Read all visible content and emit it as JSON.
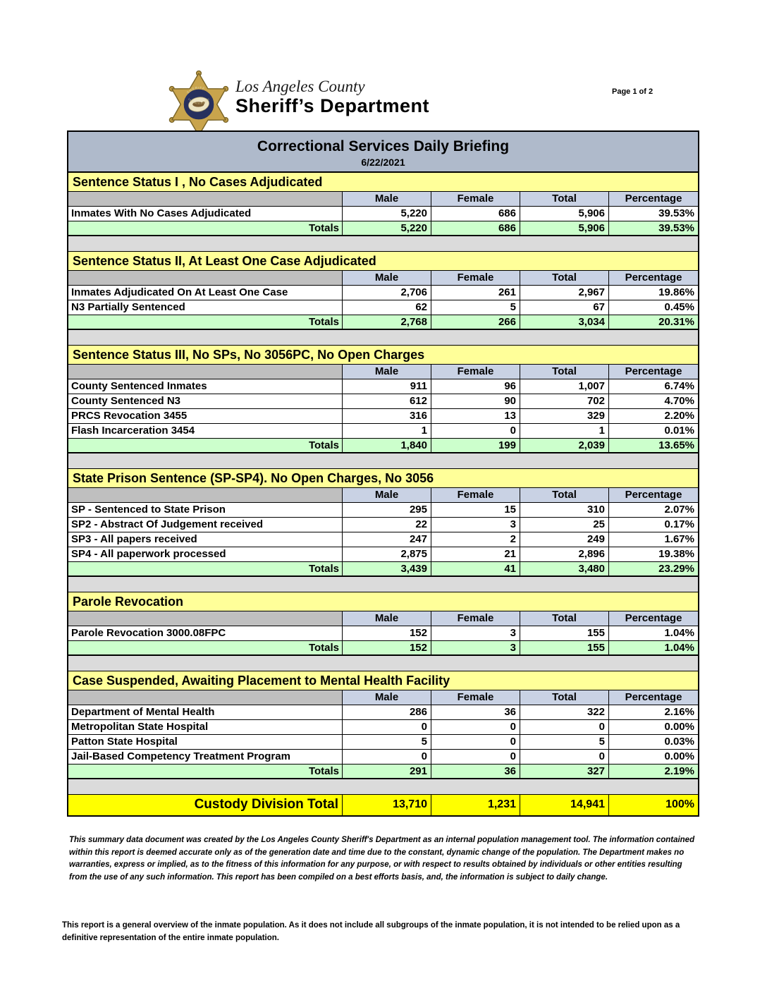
{
  "header": {
    "logo_line1": "Los Angeles County",
    "logo_line2": "Sheriff’s Department",
    "badge_top": "SHERIFF",
    "badge_bottom": "LOS ANGELES COUNTY",
    "page_indicator": "Page 1 of 2",
    "title": "Correctional Services Daily Briefing",
    "date": "6/22/2021"
  },
  "columns": [
    "Male",
    "Female",
    "Total",
    "Percentage"
  ],
  "totals_label": "Totals",
  "sections": [
    {
      "title": "Sentence Status I , No Cases Adjudicated",
      "rows": [
        {
          "label": "Inmates With No Cases Adjudicated",
          "male": "5,220",
          "female": "686",
          "total": "5,906",
          "percentage": "39.53%"
        }
      ],
      "totals": {
        "male": "5,220",
        "female": "686",
        "total": "5,906",
        "percentage": "39.53%"
      }
    },
    {
      "title": "Sentence Status II, At Least One Case Adjudicated",
      "rows": [
        {
          "label": "Inmates Adjudicated On At Least One Case",
          "male": "2,706",
          "female": "261",
          "total": "2,967",
          "percentage": "19.86%"
        },
        {
          "label": "N3 Partially Sentenced",
          "male": "62",
          "female": "5",
          "total": "67",
          "percentage": "0.45%"
        }
      ],
      "totals": {
        "male": "2,768",
        "female": "266",
        "total": "3,034",
        "percentage": "20.31%"
      }
    },
    {
      "title": "Sentence Status III, No SPs, No 3056PC, No Open Charges",
      "rows": [
        {
          "label": "County Sentenced Inmates",
          "male": "911",
          "female": "96",
          "total": "1,007",
          "percentage": "6.74%"
        },
        {
          "label": "County Sentenced N3",
          "male": "612",
          "female": "90",
          "total": "702",
          "percentage": "4.70%"
        },
        {
          "label": "PRCS Revocation 3455",
          "male": "316",
          "female": "13",
          "total": "329",
          "percentage": "2.20%"
        },
        {
          "label": "Flash Incarceration 3454",
          "male": "1",
          "female": "0",
          "total": "1",
          "percentage": "0.01%"
        }
      ],
      "totals": {
        "male": "1,840",
        "female": "199",
        "total": "2,039",
        "percentage": "13.65%"
      }
    },
    {
      "title": "State Prison Sentence (SP-SP4). No Open Charges, No 3056",
      "rows": [
        {
          "label": "SP - Sentenced to State Prison",
          "male": "295",
          "female": "15",
          "total": "310",
          "percentage": "2.07%"
        },
        {
          "label": "SP2 - Abstract Of Judgement received",
          "male": "22",
          "female": "3",
          "total": "25",
          "percentage": "0.17%"
        },
        {
          "label": "SP3 - All papers received",
          "male": "247",
          "female": "2",
          "total": "249",
          "percentage": "1.67%"
        },
        {
          "label": "SP4 - All paperwork processed",
          "male": "2,875",
          "female": "21",
          "total": "2,896",
          "percentage": "19.38%"
        }
      ],
      "totals": {
        "male": "3,439",
        "female": "41",
        "total": "3,480",
        "percentage": "23.29%"
      }
    },
    {
      "title": "Parole Revocation",
      "rows": [
        {
          "label": "Parole Revocation 3000.08FPC",
          "male": "152",
          "female": "3",
          "total": "155",
          "percentage": "1.04%"
        }
      ],
      "totals": {
        "male": "152",
        "female": "3",
        "total": "155",
        "percentage": "1.04%"
      }
    },
    {
      "title": "Case Suspended, Awaiting Placement to Mental Health Facility",
      "rows": [
        {
          "label": "Department of Mental Health",
          "male": "286",
          "female": "36",
          "total": "322",
          "percentage": "2.16%"
        },
        {
          "label": "Metropolitan State Hospital",
          "male": "0",
          "female": "0",
          "total": "0",
          "percentage": "0.00%"
        },
        {
          "label": "Patton State Hospital",
          "male": "5",
          "female": "0",
          "total": "5",
          "percentage": "0.03%"
        },
        {
          "label": "Jail-Based Competency Treatment Program",
          "male": "0",
          "female": "0",
          "total": "0",
          "percentage": "0.00%"
        }
      ],
      "totals": {
        "male": "291",
        "female": "36",
        "total": "327",
        "percentage": "2.19%"
      }
    }
  ],
  "custody_total": {
    "label": "Custody Division Total",
    "male": "13,710",
    "female": "1,231",
    "total": "14,941",
    "percentage": "100%"
  },
  "disclaimer": "This summary data document was created by the Los Angeles County Sheriff's Department as an internal population management tool.  The information contained within this report is deemed accurate only as of the generation date and time due to the constant, dynamic change of the population.  The Department makes no warranties, express or implied, as to the fitness of this information for any purpose, or with respect to results obtained by individuals or other entities resulting from the use of any such information.  This report has been compiled on a best efforts basis, and, the information is subject to daily change.",
  "footnote": "This report is a general overview of the inmate population.  As it does not include all subgroups of the inmate population, it is not intended to be relied upon as a definitive representation of the entire inmate population.",
  "colors": {
    "section_header_bg": "#FFFF99",
    "column_header_bg": "#C9D2E4",
    "totals_bg": "#CCFFCC",
    "custody_bg": "#FFFF00",
    "title_bar_bg": "#AFBACB",
    "spacer_bg": "#DBDBDB",
    "label_header_bg": "#BFBFBF",
    "badge_gold": "#C9A44C",
    "badge_navy": "#27305E"
  }
}
